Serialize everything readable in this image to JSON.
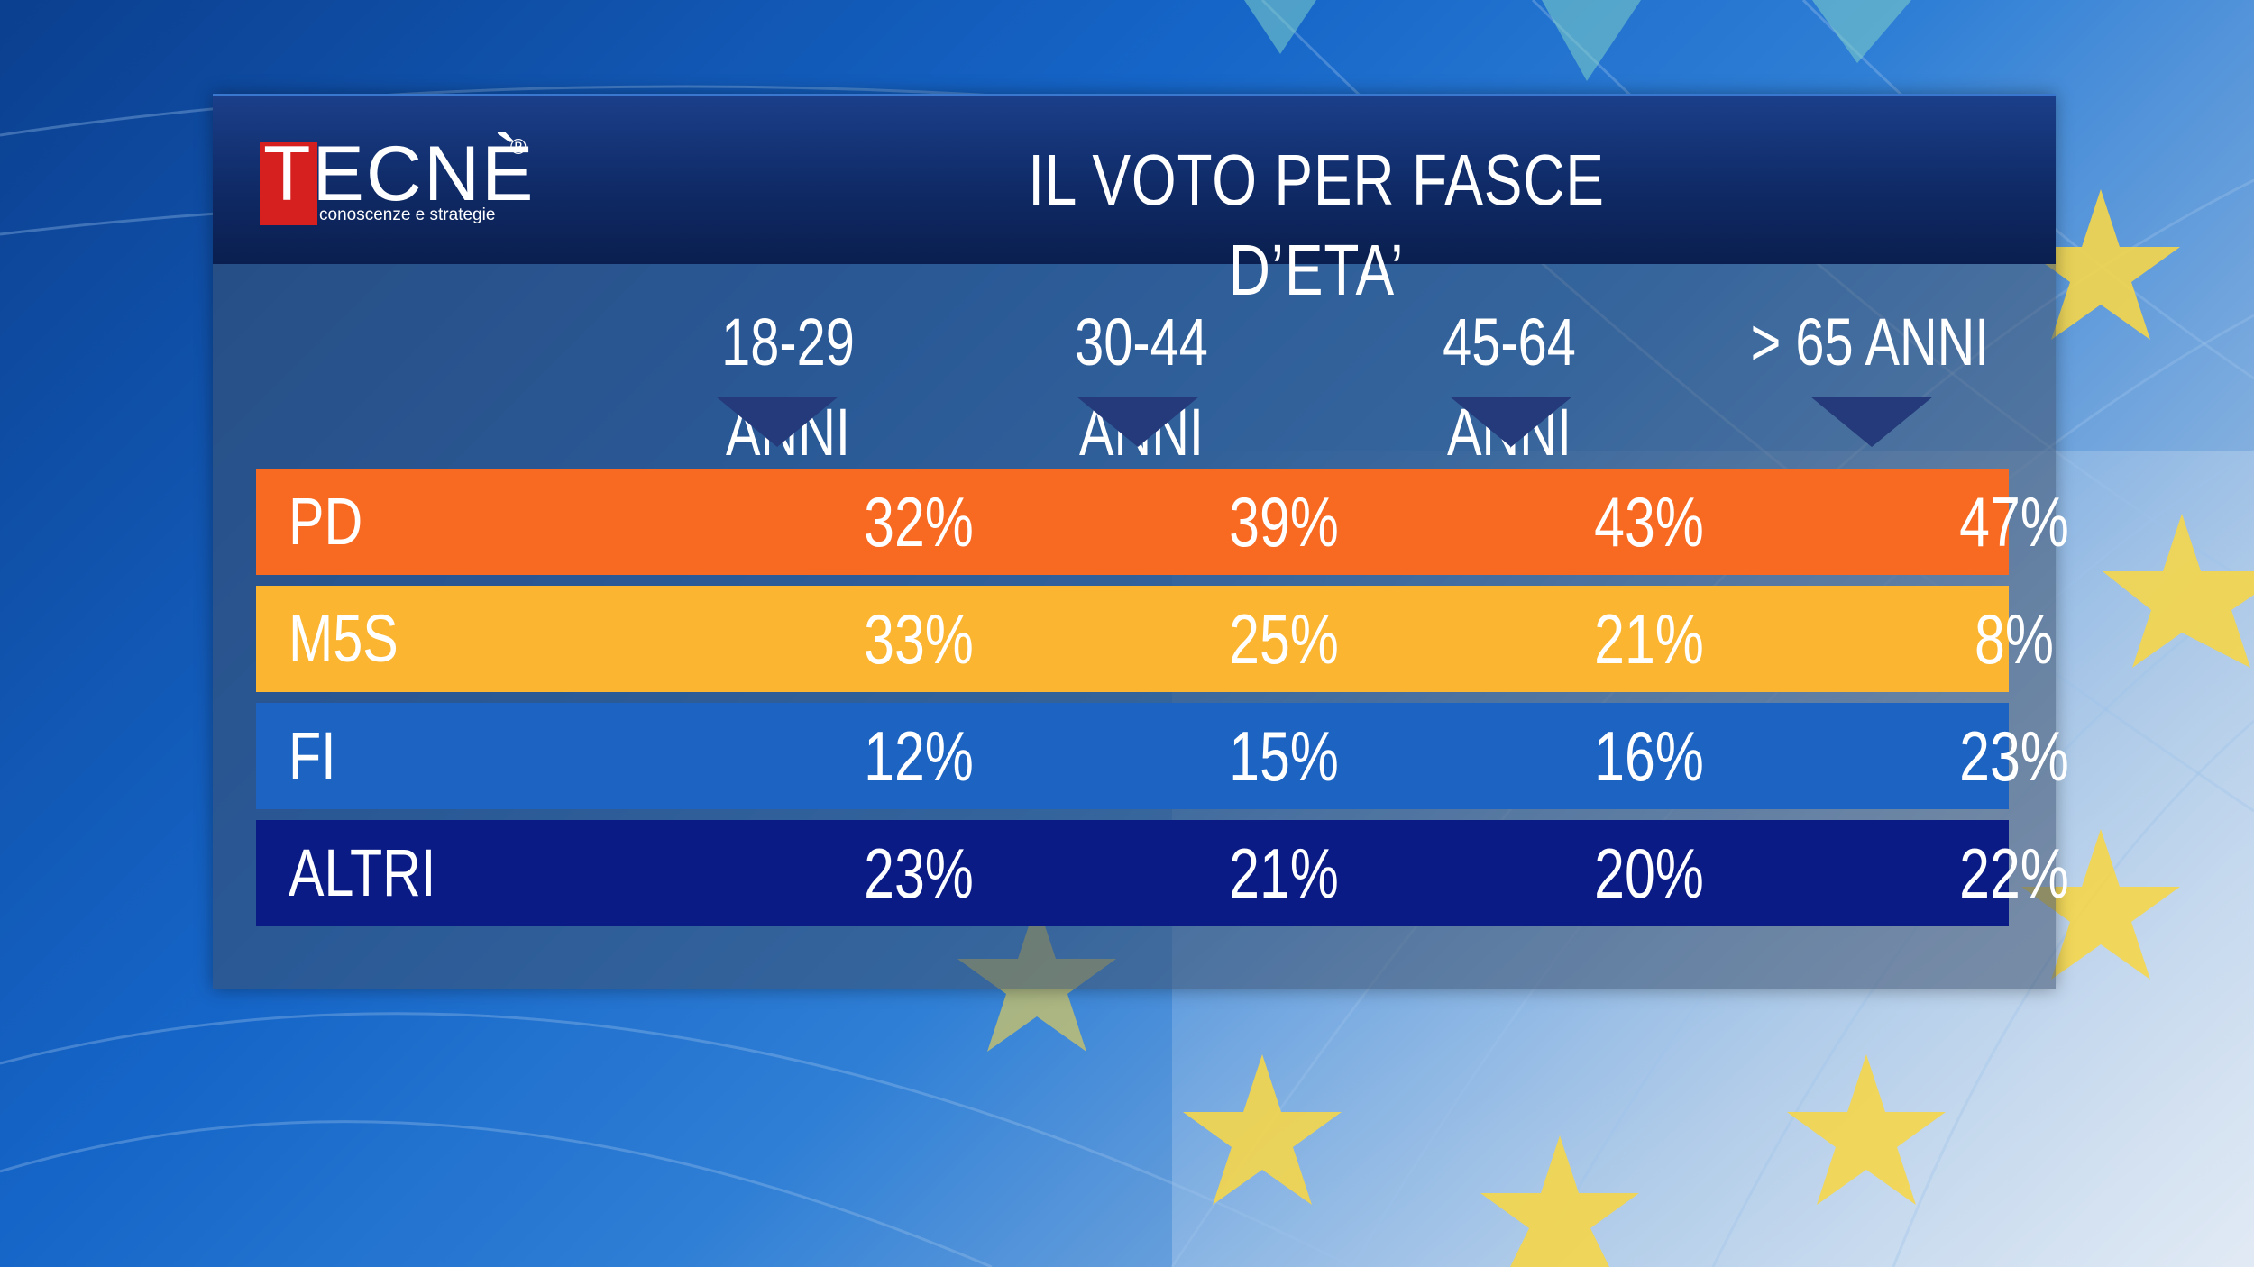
{
  "header": {
    "logo_text": "TECNÈ",
    "logo_registered": "®",
    "logo_tagline": "conoscenze e strategie",
    "title": "IL VOTO PER FASCE D’ETA’"
  },
  "colors": {
    "PD": "#f86a22",
    "M5S": "#fbb531",
    "FI": "#1d64c2",
    "ALTRI": "#0a1b85",
    "arrow": "#243a7a",
    "logo_red": "#d61f1f"
  },
  "chart_data": {
    "type": "table",
    "title": "IL VOTO PER FASCE D’ETA’",
    "columns": [
      "18-29 ANNI",
      "30-44 ANNI",
      "45-64 ANNI",
      "> 65 ANNI"
    ],
    "rows": [
      {
        "party": "PD",
        "values": [
          "32%",
          "39%",
          "43%",
          "47%"
        ]
      },
      {
        "party": "M5S",
        "values": [
          "33%",
          "25%",
          "21%",
          "8%"
        ]
      },
      {
        "party": "FI",
        "values": [
          "12%",
          "15%",
          "16%",
          "23%"
        ]
      },
      {
        "party": "ALTRI",
        "values": [
          "23%",
          "21%",
          "20%",
          "22%"
        ]
      }
    ]
  }
}
